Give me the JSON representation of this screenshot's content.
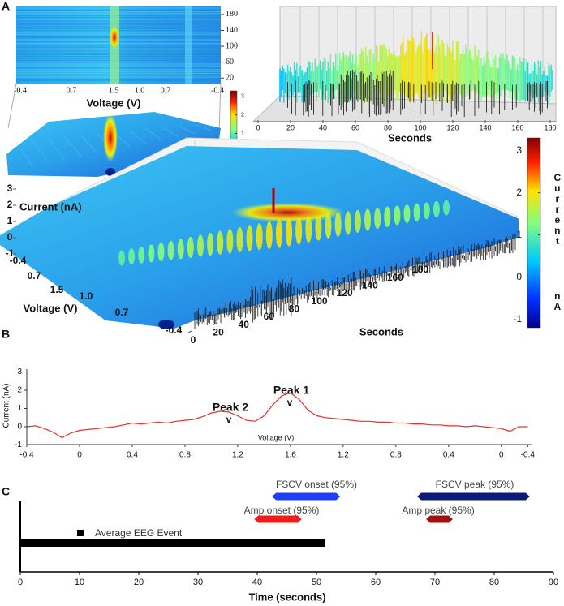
{
  "chart_data": [
    {
      "type": "heatmap",
      "panel": "A",
      "xlabel": "Voltage (V)",
      "categories": [
        "-0.4",
        "0.7",
        "1.5",
        "1.0",
        "0.7",
        "-0.4"
      ],
      "ylim": [
        0,
        190
      ],
      "yticks": [
        20,
        60,
        100,
        140,
        180
      ]
    },
    {
      "type": "surface",
      "clim": [
        -1.3,
        3.3
      ],
      "cticks": [
        -1,
        0,
        1,
        2,
        3
      ]
    },
    {
      "type": "trace",
      "xlabel": "Seconds",
      "xlim": [
        0,
        185
      ],
      "xticks": [
        0,
        20,
        40,
        60,
        80,
        100,
        120,
        140,
        160,
        180
      ]
    },
    {
      "type": "surface3d",
      "zlabel": "Current (nA)",
      "zlim": [
        -1,
        3
      ],
      "zticks": [
        -1,
        0,
        1,
        2,
        3
      ],
      "ylabel": "Voltage (V)",
      "categories": [
        "-0.4",
        "0.7",
        "1.5",
        "1.0",
        "0.7",
        "-0.4"
      ],
      "xlabel": "Seconds",
      "xlim": [
        0,
        180
      ],
      "xticks": [
        0,
        20,
        40,
        60,
        80,
        100,
        120,
        140,
        160,
        180
      ],
      "clim": [
        -1.2,
        3.3
      ],
      "cticks": [
        -1,
        0,
        1,
        2,
        3
      ],
      "clabel": [
        "Current",
        "nA"
      ]
    },
    {
      "type": "line",
      "panel": "B",
      "ylabel": "Current (nA)",
      "xlabel": "Voltage (V)",
      "color": "#e8302a",
      "ylim": [
        -1,
        3
      ],
      "yticks": [
        -1,
        0,
        1,
        2,
        3
      ],
      "categories": [
        "-0.4",
        null,
        null,
        null,
        null,
        null,
        "0",
        null,
        null,
        null,
        null,
        null,
        "0.4",
        null,
        null,
        null,
        null,
        null,
        "0.8",
        null,
        null,
        null,
        null,
        null,
        "1.2",
        null,
        null,
        null,
        null,
        null,
        "1.6",
        null,
        null,
        null,
        null,
        null,
        "1.2",
        null,
        null,
        null,
        null,
        null,
        "0.8",
        null,
        null,
        null,
        null,
        null,
        "0.4",
        null,
        null,
        null,
        null,
        null,
        "0",
        null,
        null,
        "-0.4"
      ],
      "values": [
        0,
        0.05,
        -0.1,
        -0.3,
        -0.6,
        -0.35,
        -0.2,
        -0.15,
        -0.1,
        -0.05,
        0,
        0.1,
        0.2,
        0.15,
        0.2,
        0.25,
        0.2,
        0.3,
        0.35,
        0.4,
        0.55,
        0.75,
        0.85,
        0.8,
        0.6,
        0.35,
        0.3,
        0.6,
        1.2,
        1.7,
        1.85,
        1.5,
        0.9,
        0.6,
        0.5,
        0.45,
        0.4,
        0.35,
        0.3,
        0.3,
        0.25,
        0.25,
        0.2,
        0.2,
        0.15,
        0.15,
        0.1,
        0.1,
        0.05,
        0.05,
        0,
        0.05,
        0,
        -0.05,
        -0.1,
        -0.25,
        0,
        0
      ],
      "annotations": [
        {
          "text": "Peak 1",
          "marker": "v"
        },
        {
          "text": "Peak 2",
          "marker": "v"
        }
      ]
    },
    {
      "type": "range",
      "panel": "C",
      "xlabel": "Time (seconds)",
      "xlim": [
        0,
        90
      ],
      "xticks": [
        0,
        10,
        20,
        30,
        40,
        50,
        60,
        70,
        80,
        90
      ],
      "series": [
        {
          "name": "FSCV onset (95%)",
          "color": "#1f3ff2",
          "values": [
            42.5,
            54
          ]
        },
        {
          "name": "Amp onset (95%)",
          "color": "#ee1c1c",
          "values": [
            39.5,
            47.5
          ]
        },
        {
          "name": "FSCV peak (95%)",
          "color": "#0c1a7a",
          "values": [
            67,
            86
          ]
        },
        {
          "name": "Amp peak (95%)",
          "color": "#a01212",
          "values": [
            68.5,
            73
          ]
        },
        {
          "name": "Average EEG Event",
          "color": "#000000",
          "values": [
            0,
            51.5
          ]
        }
      ]
    }
  ]
}
